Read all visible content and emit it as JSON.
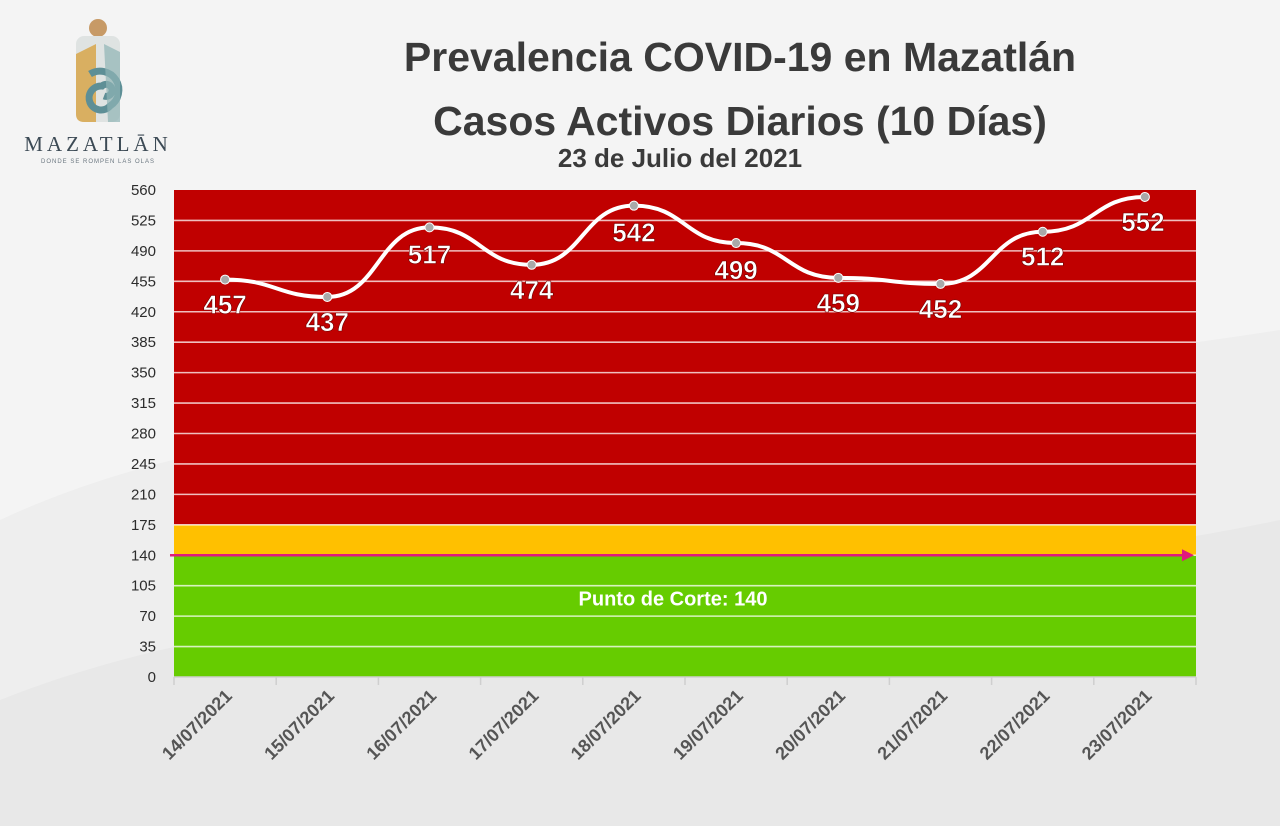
{
  "logo": {
    "name": "MAZATLĀN",
    "tagline": "DONDE SE ROMPEN LAS OLAS"
  },
  "header": {
    "title_line1": "Prevalencia COVID-19 en Mazatlán",
    "title_line2": "Casos Activos Diarios (10 Días)",
    "date": "23 de Julio del 2021"
  },
  "colors": {
    "red_zone": "#c00000",
    "orange_zone": "#ffc000",
    "green_zone": "#66cc00",
    "cutoff_line": "#e0197d",
    "series_line": "#ffffff"
  },
  "chart_data": {
    "type": "line",
    "categories": [
      "14/07/2021",
      "15/07/2021",
      "16/07/2021",
      "17/07/2021",
      "18/07/2021",
      "19/07/2021",
      "20/07/2021",
      "21/07/2021",
      "22/07/2021",
      "23/07/2021"
    ],
    "series": [
      {
        "values": [
          457,
          437,
          517,
          474,
          542,
          499,
          459,
          452,
          512,
          552
        ]
      }
    ],
    "data_labels": [
      "457",
      "437",
      "517",
      "474",
      "542",
      "499",
      "459",
      "452",
      "512",
      "552"
    ],
    "ylim": [
      0,
      560
    ],
    "yticks": [
      "0",
      "35",
      "70",
      "105",
      "140",
      "175",
      "210",
      "245",
      "280",
      "315",
      "350",
      "385",
      "420",
      "455",
      "490",
      "525",
      "560"
    ],
    "zones": [
      {
        "from": 0,
        "to": 140,
        "color": "green"
      },
      {
        "from": 140,
        "to": 175,
        "color": "orange"
      },
      {
        "from": 175,
        "to": 560,
        "color": "red"
      }
    ],
    "cutoff": {
      "value": 140,
      "label": "Punto de Corte: 140"
    },
    "grid": true
  }
}
